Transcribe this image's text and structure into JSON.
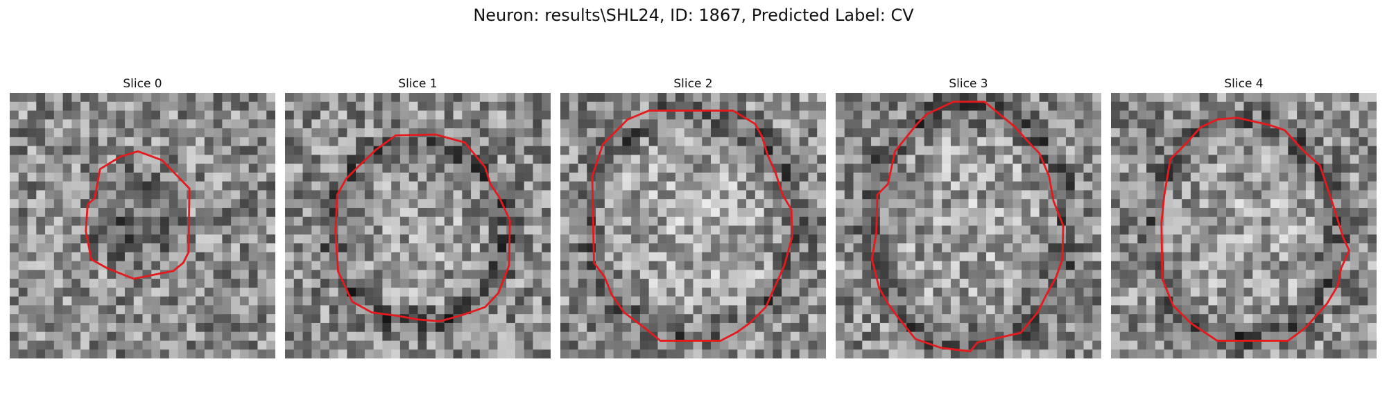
{
  "figure": {
    "title": "Neuron: results\\SHL24, ID: 1867, Predicted Label: CV"
  },
  "contour_color": "#e41a1c",
  "image": {
    "colormap": "gray",
    "grid": 30
  },
  "panels": [
    {
      "title": "Slice 0",
      "seed": 11,
      "center": [
        14.5,
        14.8
      ],
      "blob": {
        "rx": 5.4,
        "ry": 6.8,
        "shade": -0.35,
        "ring": 0.0
      },
      "contour": [
        [
          14.5,
          6.6
        ],
        [
          17.2,
          7.6
        ],
        [
          20.3,
          10.8
        ],
        [
          20.2,
          18.0
        ],
        [
          19.6,
          19.2
        ],
        [
          18.5,
          20.1
        ],
        [
          16.0,
          20.6
        ],
        [
          14.0,
          21.0
        ],
        [
          11.0,
          19.8
        ],
        [
          9.2,
          18.8
        ],
        [
          8.6,
          15.6
        ],
        [
          8.8,
          12.6
        ],
        [
          9.6,
          11.9
        ],
        [
          10.2,
          8.6
        ],
        [
          12.5,
          7.2
        ]
      ]
    },
    {
      "title": "Slice 1",
      "seed": 23,
      "center": [
        15.0,
        15.8
      ],
      "blob": {
        "rx": 9.8,
        "ry": 10.0,
        "shade": 0.15,
        "ring": -0.45
      },
      "contour": [
        [
          12.5,
          4.8
        ],
        [
          17.0,
          4.7
        ],
        [
          20.3,
          5.6
        ],
        [
          22.6,
          8.4
        ],
        [
          23.2,
          10.3
        ],
        [
          24.2,
          11.8
        ],
        [
          25.4,
          14.4
        ],
        [
          25.3,
          19.5
        ],
        [
          24.1,
          22.6
        ],
        [
          22.6,
          24.2
        ],
        [
          20.0,
          25.1
        ],
        [
          17.5,
          25.8
        ],
        [
          15.0,
          25.6
        ],
        [
          12.8,
          25.2
        ],
        [
          9.8,
          24.8
        ],
        [
          7.6,
          23.6
        ],
        [
          6.0,
          20.2
        ],
        [
          5.7,
          15.6
        ],
        [
          5.9,
          11.5
        ],
        [
          6.9,
          9.7
        ],
        [
          8.4,
          8.2
        ],
        [
          10.3,
          6.4
        ]
      ]
    },
    {
      "title": "Slice 2",
      "seed": 37,
      "center": [
        15.0,
        15.0
      ],
      "blob": {
        "rx": 11.5,
        "ry": 12.5,
        "shade": 0.25,
        "ring": -0.35
      },
      "contour": [
        [
          10.0,
          2.0
        ],
        [
          19.5,
          2.0
        ],
        [
          22.0,
          3.5
        ],
        [
          22.8,
          5.0
        ],
        [
          23.4,
          7.0
        ],
        [
          24.3,
          9.0
        ],
        [
          25.1,
          11.5
        ],
        [
          26.1,
          13.2
        ],
        [
          26.2,
          16.2
        ],
        [
          25.3,
          19.5
        ],
        [
          24.4,
          21.5
        ],
        [
          23.2,
          24.2
        ],
        [
          21.4,
          26.0
        ],
        [
          20.0,
          27.0
        ],
        [
          18.1,
          28.0
        ],
        [
          11.3,
          28.0
        ],
        [
          9.7,
          26.7
        ],
        [
          7.2,
          24.8
        ],
        [
          5.8,
          22.8
        ],
        [
          5.0,
          20.8
        ],
        [
          3.8,
          19.2
        ],
        [
          3.6,
          9.4
        ],
        [
          4.8,
          5.8
        ],
        [
          7.6,
          3.0
        ]
      ]
    },
    {
      "title": "Slice 3",
      "seed": 53,
      "center": [
        15.0,
        15.0
      ],
      "blob": {
        "rx": 11.0,
        "ry": 13.2,
        "shade": 0.2,
        "ring": -0.45
      },
      "contour": [
        [
          13.3,
          1.0
        ],
        [
          16.8,
          1.0
        ],
        [
          20.2,
          3.8
        ],
        [
          22.1,
          5.9
        ],
        [
          23.0,
          6.8
        ],
        [
          24.1,
          9.4
        ],
        [
          24.6,
          12.2
        ],
        [
          25.7,
          15.0
        ],
        [
          25.6,
          18.8
        ],
        [
          24.9,
          20.8
        ],
        [
          23.8,
          22.8
        ],
        [
          22.8,
          24.8
        ],
        [
          20.9,
          27.1
        ],
        [
          16.0,
          28.2
        ],
        [
          15.2,
          29.2
        ],
        [
          11.9,
          28.8
        ],
        [
          9.0,
          27.8
        ],
        [
          7.0,
          25.3
        ],
        [
          5.9,
          23.8
        ],
        [
          4.9,
          22.0
        ],
        [
          4.1,
          18.8
        ],
        [
          4.6,
          15.7
        ],
        [
          4.7,
          11.5
        ],
        [
          5.9,
          10.3
        ],
        [
          6.7,
          6.6
        ],
        [
          9.2,
          3.5
        ],
        [
          10.3,
          2.4
        ]
      ]
    },
    {
      "title": "Slice 4",
      "seed": 71,
      "center": [
        15.0,
        15.5
      ],
      "blob": {
        "rx": 10.2,
        "ry": 12.0,
        "shade": 0.2,
        "ring": -0.4
      },
      "contour": [
        [
          12.0,
          3.0
        ],
        [
          14.2,
          2.8
        ],
        [
          17.8,
          3.6
        ],
        [
          19.6,
          4.2
        ],
        [
          21.8,
          6.6
        ],
        [
          23.6,
          8.2
        ],
        [
          24.4,
          10.6
        ],
        [
          25.2,
          13.0
        ],
        [
          26.2,
          16.3
        ],
        [
          26.9,
          17.8
        ],
        [
          26.0,
          19.8
        ],
        [
          25.6,
          21.8
        ],
        [
          24.4,
          23.8
        ],
        [
          22.0,
          26.5
        ],
        [
          20.0,
          28.0
        ],
        [
          12.0,
          28.0
        ],
        [
          9.0,
          26.0
        ],
        [
          7.0,
          24.0
        ],
        [
          5.8,
          21.0
        ],
        [
          5.7,
          14.7
        ],
        [
          6.0,
          11.7
        ],
        [
          6.7,
          7.5
        ],
        [
          8.6,
          5.6
        ],
        [
          10.1,
          3.9
        ]
      ]
    }
  ]
}
